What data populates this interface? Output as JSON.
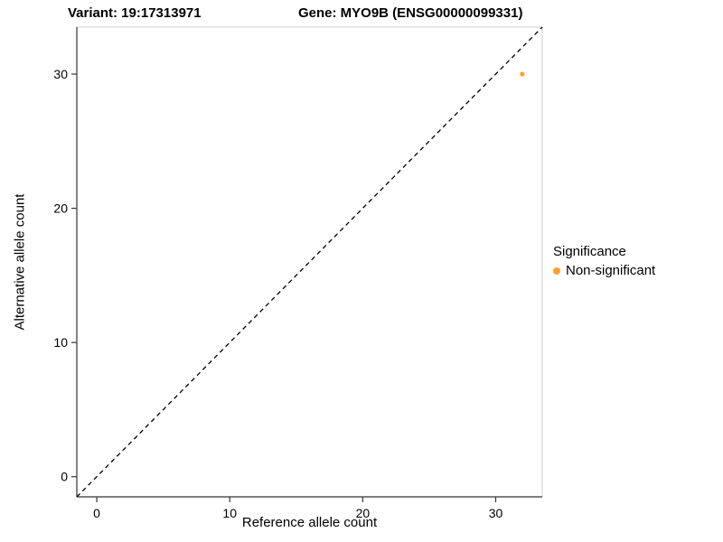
{
  "chart_data": {
    "type": "scatter",
    "title_left": "Variant: 19:17313971",
    "title_right": "Gene: MYO9B (ENSG00000099331)",
    "xlabel": "Reference allele count",
    "ylabel": "Alternative allele count",
    "xlim": [
      -1.5,
      33.5
    ],
    "ylim": [
      -1.5,
      33.5
    ],
    "xticks": [
      0,
      10,
      20,
      30
    ],
    "yticks": [
      0,
      10,
      20,
      30
    ],
    "grid": false,
    "points": [
      {
        "x": 32,
        "y": 30,
        "series": "Non-significant"
      }
    ],
    "identity_line": {
      "style": "dashed",
      "color": "#000000",
      "from": [
        -1.5,
        -1.5
      ],
      "to": [
        33.5,
        33.5
      ]
    },
    "point_color": "#FFA22E",
    "axis_color": "#333333",
    "panel_border_color": "#cccccc",
    "legend": {
      "title": "Significance",
      "position": "right",
      "items": [
        {
          "label": "Non-significant",
          "color": "#FFA22E"
        }
      ]
    }
  }
}
